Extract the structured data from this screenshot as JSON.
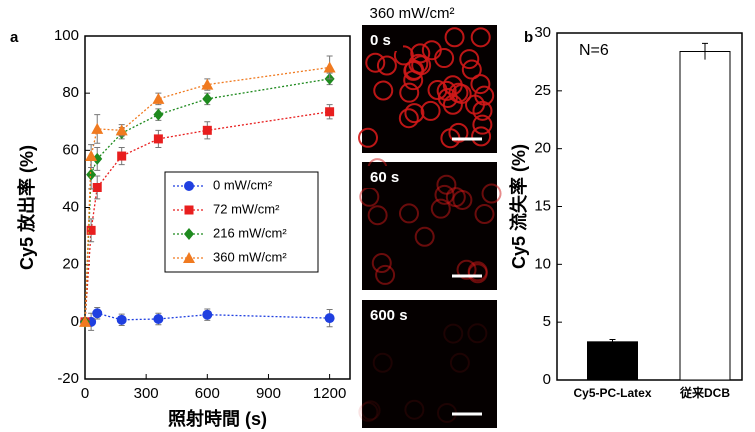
{
  "chart_data": [
    {
      "type": "line",
      "panel_label": "a",
      "x_label": "照射時間 (s)",
      "y_label": "Cy5 放出率 (%)",
      "x": [
        0,
        30,
        60,
        180,
        360,
        600,
        1200
      ],
      "xlim": [
        0,
        1300
      ],
      "xticks": [
        0,
        300,
        600,
        900,
        1200
      ],
      "ylim": [
        -20,
        100
      ],
      "yticks": [
        -20,
        0,
        20,
        40,
        60,
        80,
        100
      ],
      "grid": false,
      "legend": "center",
      "series": [
        {
          "name": "0 mW/cm²",
          "color": "#1f3fe0",
          "marker": "circle",
          "values": [
            0,
            0,
            3,
            0.7,
            1,
            2.5,
            1.3
          ],
          "errors": [
            0,
            3,
            2,
            2,
            2,
            2,
            3
          ]
        },
        {
          "name": "72 mW/cm²",
          "color": "#e81e1e",
          "marker": "square",
          "values": [
            0,
            32,
            47,
            58,
            64,
            67,
            73.5
          ],
          "errors": [
            0,
            4,
            4,
            3,
            3,
            3,
            2.5
          ]
        },
        {
          "name": "216 mW/cm²",
          "color": "#1e8a1e",
          "marker": "diamond",
          "values": [
            0,
            51.5,
            57,
            66,
            72.5,
            78,
            85
          ],
          "errors": [
            0,
            5,
            4,
            2,
            2,
            2,
            2
          ]
        },
        {
          "name": "360 mW/cm²",
          "color": "#f07a20",
          "marker": "triangle",
          "values": [
            0,
            58,
            67.5,
            67,
            78,
            83,
            89
          ],
          "errors": [
            0,
            4,
            5,
            2,
            2,
            2,
            4
          ]
        }
      ]
    },
    {
      "type": "bar",
      "panel_label": "b",
      "y_label": "Cy5 流失率 (%)",
      "annotation": "N=6",
      "categories": [
        "Cy5-PC-Latex",
        "従来DCB"
      ],
      "values": [
        3.3,
        28.4
      ],
      "errors": [
        0.2,
        0.7
      ],
      "colors": [
        "#000000",
        "#ffffff"
      ],
      "ylim": [
        0,
        30
      ],
      "yticks": [
        0,
        5,
        10,
        15,
        20,
        25,
        30
      ],
      "grid": false
    }
  ],
  "micrographs": {
    "title": "360 mW/cm²",
    "panels": [
      "0 s",
      "60 s",
      "600 s"
    ]
  }
}
